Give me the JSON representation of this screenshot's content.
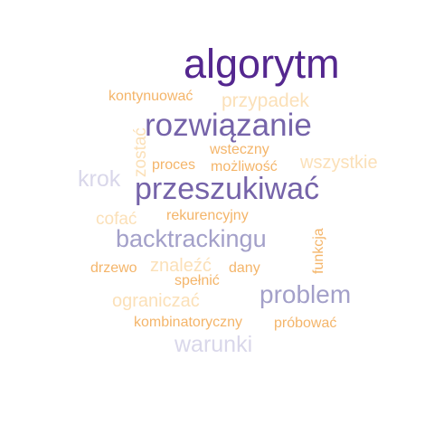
{
  "cloud": {
    "words": [
      {
        "text": "algorytm",
        "color": "#54278f"
      },
      {
        "text": "rozwiązanie",
        "color": "#7563a9"
      },
      {
        "text": "przeszukiwać",
        "color": "#7563a9"
      },
      {
        "text": "backtrackingu",
        "color": "#a3a0c9"
      },
      {
        "text": "problem",
        "color": "#a3a0c9"
      },
      {
        "text": "krok",
        "color": "#d9d7ea"
      },
      {
        "text": "warunki",
        "color": "#d9d7ea"
      },
      {
        "text": "przypadek",
        "color": "#fbe0b8"
      },
      {
        "text": "wszystkie",
        "color": "#fbe0b8"
      },
      {
        "text": "zostać",
        "color": "#fbe0b8"
      },
      {
        "text": "cofać",
        "color": "#fbe0b8"
      },
      {
        "text": "znaleźć",
        "color": "#fbe0b8"
      },
      {
        "text": "ograniczać",
        "color": "#fbe0b8"
      },
      {
        "text": "kontynuować",
        "color": "#f4b56a"
      },
      {
        "text": "wsteczny",
        "color": "#f4b56a"
      },
      {
        "text": "proces",
        "color": "#f4b56a"
      },
      {
        "text": "możliwość",
        "color": "#f4b56a"
      },
      {
        "text": "rekurencyjny",
        "color": "#f4b56a"
      },
      {
        "text": "funkcja",
        "color": "#f4b56a"
      },
      {
        "text": "drzewo",
        "color": "#f4b56a"
      },
      {
        "text": "dany",
        "color": "#f4b56a"
      },
      {
        "text": "spełnić",
        "color": "#f4b56a"
      },
      {
        "text": "kombinatoryczny",
        "color": "#f4b56a"
      },
      {
        "text": "próbować",
        "color": "#f4b56a"
      }
    ]
  }
}
